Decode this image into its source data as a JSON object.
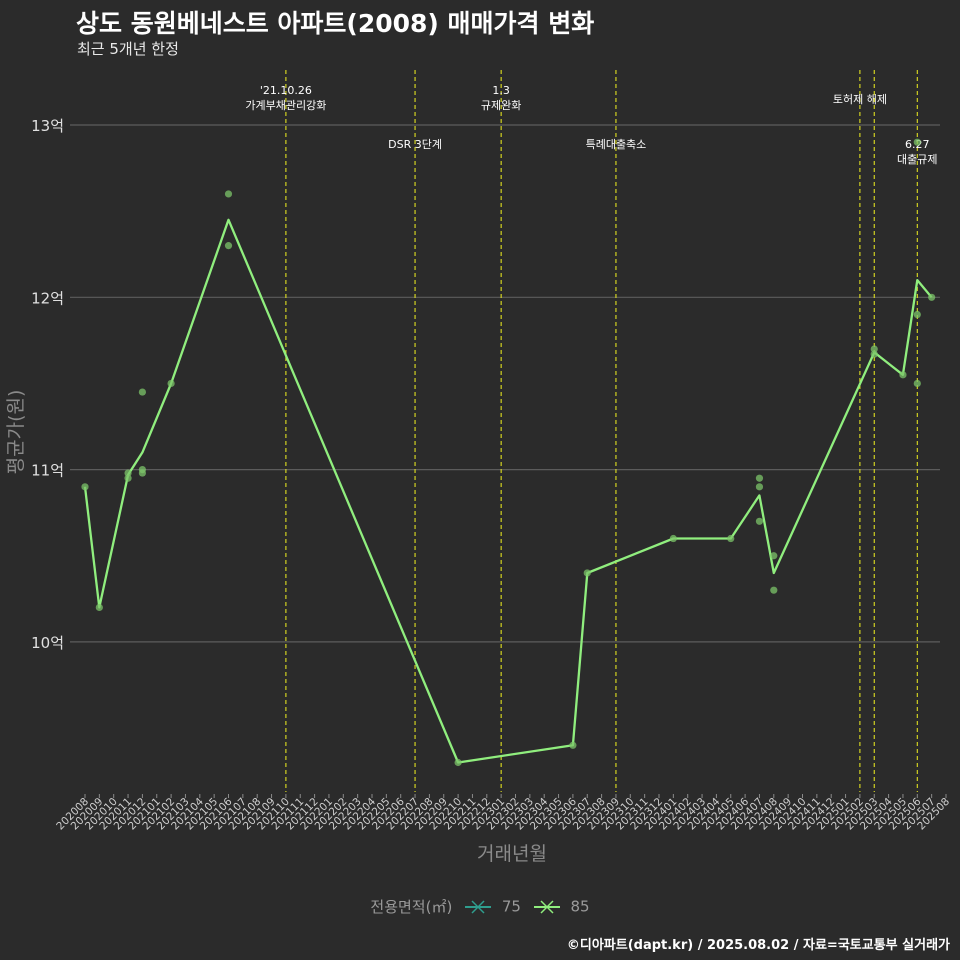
{
  "title": "상도 동원베네스트 아파트(2008) 매매가격 변화",
  "subtitle": "최근 5개년 한정",
  "caption": "©디아파트(dapt.kr) / 2025.08.02 / 자료=국토교통부 실거래가",
  "chart_data": {
    "type": "line",
    "xlabel": "거래년월",
    "ylabel": "평균가(원)",
    "ylim": [
      9.15,
      13.35
    ],
    "y_ticks": [
      {
        "value": 10,
        "label": "10억"
      },
      {
        "value": 11,
        "label": "11억"
      },
      {
        "value": 12,
        "label": "12억"
      },
      {
        "value": 13,
        "label": "13억"
      }
    ],
    "x_categories": [
      "202008",
      "202009",
      "202010",
      "202011",
      "202012",
      "202101",
      "202102",
      "202103",
      "202104",
      "202105",
      "202106",
      "202107",
      "202108",
      "202109",
      "202110",
      "202111",
      "202112",
      "202201",
      "202202",
      "202203",
      "202204",
      "202205",
      "202206",
      "202207",
      "202208",
      "202209",
      "202210",
      "202211",
      "202212",
      "202301",
      "202302",
      "202303",
      "202304",
      "202305",
      "202306",
      "202307",
      "202308",
      "202309",
      "202310",
      "202311",
      "202312",
      "202401",
      "202402",
      "202403",
      "202404",
      "202405",
      "202406",
      "202407",
      "202408",
      "202409",
      "202410",
      "202411",
      "202412",
      "202501",
      "202502",
      "202503",
      "202504",
      "202505",
      "202506",
      "202507",
      "202508"
    ],
    "legend_title": "전용면적(㎡)",
    "legend": [
      {
        "name": "75",
        "color": "#2f9e8e"
      },
      {
        "name": "85",
        "color": "#90ee7e"
      }
    ],
    "series": [
      {
        "name": "85",
        "color": "#90ee7e",
        "line": [
          [
            "202008",
            10.9
          ],
          [
            "202009",
            10.2
          ],
          [
            "202011",
            10.97
          ],
          [
            "202012",
            11.1
          ],
          [
            "202102",
            11.5
          ],
          [
            "202106",
            12.45
          ],
          [
            "202210",
            9.3
          ],
          [
            "202306",
            9.4
          ],
          [
            "202307",
            10.4
          ],
          [
            "202401",
            10.6
          ],
          [
            "202405",
            10.6
          ],
          [
            "202407",
            10.85
          ],
          [
            "202408",
            10.4
          ],
          [
            "202503",
            11.68
          ],
          [
            "202505",
            11.55
          ],
          [
            "202506",
            12.1
          ],
          [
            "202507",
            12.0
          ]
        ],
        "points": [
          [
            "202008",
            10.9
          ],
          [
            "202009",
            10.2
          ],
          [
            "202011",
            10.95
          ],
          [
            "202011",
            10.98
          ],
          [
            "202012",
            11.45
          ],
          [
            "202012",
            11.0
          ],
          [
            "202012",
            10.98
          ],
          [
            "202102",
            11.5
          ],
          [
            "202106",
            12.6
          ],
          [
            "202106",
            12.3
          ],
          [
            "202210",
            9.3
          ],
          [
            "202306",
            9.4
          ],
          [
            "202307",
            10.4
          ],
          [
            "202401",
            10.6
          ],
          [
            "202405",
            10.6
          ],
          [
            "202407",
            10.95
          ],
          [
            "202407",
            10.9
          ],
          [
            "202407",
            10.7
          ],
          [
            "202408",
            10.5
          ],
          [
            "202408",
            10.3
          ],
          [
            "202503",
            11.7
          ],
          [
            "202503",
            11.67
          ],
          [
            "202505",
            11.55
          ],
          [
            "202506",
            12.9
          ],
          [
            "202506",
            11.9
          ],
          [
            "202506",
            11.5
          ],
          [
            "202507",
            12.0
          ]
        ]
      }
    ],
    "events": [
      {
        "x": "202110",
        "lines": [
          "'21.10.26",
          "가계부채관리강화"
        ],
        "level": "high"
      },
      {
        "x": "202207",
        "lines": [
          "DSR 3단계"
        ],
        "level": "low"
      },
      {
        "x": "202301",
        "lines": [
          "1.3",
          "규제완화"
        ],
        "level": "high"
      },
      {
        "x": "202309",
        "lines": [
          "특례대출축소"
        ],
        "level": "low"
      },
      {
        "x": "202502",
        "lines": [
          "토허제 해제"
        ],
        "level": "mid"
      },
      {
        "x": "202503",
        "lines": [],
        "level": "none"
      },
      {
        "x": "202506",
        "lines": [
          "6.27",
          "대출규제"
        ],
        "level": "low"
      }
    ]
  }
}
